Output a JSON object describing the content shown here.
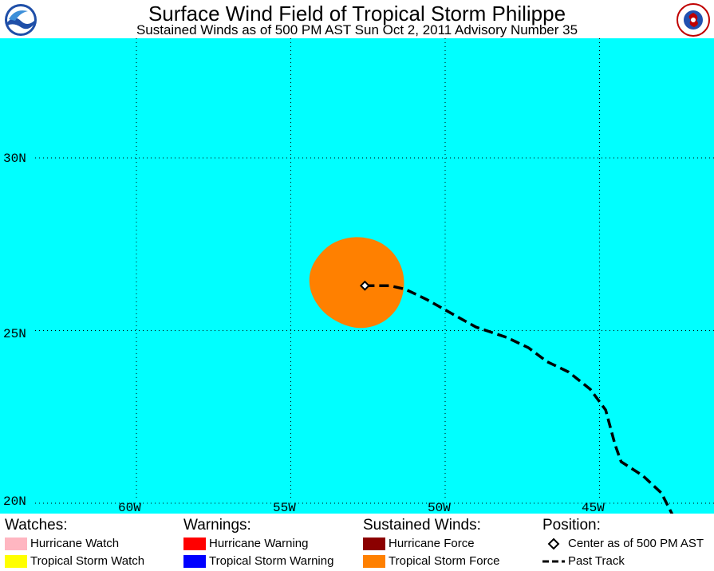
{
  "header": {
    "title": "Surface Wind Field of Tropical Storm Philippe",
    "subtitle": "Sustained Winds as of 500 PM AST Sun Oct 2, 2011    Advisory Number 35"
  },
  "logos": {
    "left": "noaa-logo",
    "right": "national-weather-service-logo"
  },
  "map": {
    "ocean_color": "#00ffff",
    "wind_color": "#ff8000",
    "lat_labels": [
      "30N",
      "25N",
      "20N"
    ],
    "lon_labels": [
      "60W",
      "55W",
      "50W",
      "45W"
    ],
    "center": {
      "lon": -52.6,
      "lat": 26.3
    },
    "past_track": [
      [
        -52.6,
        26.3
      ],
      [
        -51.8,
        26.3
      ],
      [
        -51.3,
        26.2
      ],
      [
        -50.6,
        25.9
      ],
      [
        -49.8,
        25.5
      ],
      [
        -49.0,
        25.1
      ],
      [
        -48.0,
        24.8
      ],
      [
        -47.3,
        24.5
      ],
      [
        -46.7,
        24.1
      ],
      [
        -46.0,
        23.8
      ],
      [
        -45.3,
        23.3
      ],
      [
        -44.8,
        22.7
      ],
      [
        -44.5,
        21.7
      ],
      [
        -44.3,
        21.2
      ],
      [
        -43.6,
        20.8
      ],
      [
        -43.0,
        20.3
      ],
      [
        -42.6,
        19.6
      ]
    ]
  },
  "legend": {
    "watches": {
      "heading": "Watches:",
      "items": [
        {
          "label": "Hurricane Watch",
          "color": "#ffb6c1"
        },
        {
          "label": "Tropical Storm Watch",
          "color": "#ffff00"
        }
      ]
    },
    "warnings": {
      "heading": "Warnings:",
      "items": [
        {
          "label": "Hurricane Warning",
          "color": "#ff0000"
        },
        {
          "label": "Tropical Storm Warning",
          "color": "#0000ff"
        }
      ]
    },
    "winds": {
      "heading": "Sustained Winds:",
      "items": [
        {
          "label": "Hurricane Force",
          "color": "#8b0000"
        },
        {
          "label": "Tropical Storm Force",
          "color": "#ff8000"
        }
      ]
    },
    "position": {
      "heading": "Position:",
      "items": [
        {
          "label": "Center as of 500 PM AST",
          "icon": "diamond-icon"
        },
        {
          "label": "Past Track",
          "icon": "dashed-line-icon"
        }
      ]
    }
  }
}
